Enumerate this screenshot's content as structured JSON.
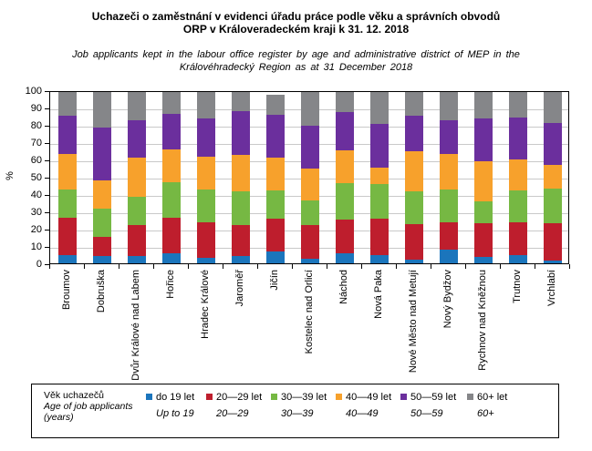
{
  "title": {
    "line1": "Uchazeči o zaměstnání v evidenci úřadu práce podle věku a správních obvodů",
    "line2": "ORP v Královeradeckém kraji k 31. 12. 2018"
  },
  "subtitle": {
    "line1": "Job applicants kept in the labour office register by age and administrative district of MEP in the",
    "line2": "Královéhradecký Region as at 31 December 2018"
  },
  "legend": {
    "title_cs": "Věk uchazečů",
    "title_en_line1": "Age of job applicants",
    "title_en_line2": "(years)"
  },
  "colors": {
    "grid": "#c9c9c9",
    "axis": "#000000"
  },
  "chart_data": {
    "type": "bar",
    "stacked": true,
    "ylabel": "%",
    "xlabel": "",
    "ylim": [
      0,
      100
    ],
    "yticks": [
      0,
      10,
      20,
      30,
      40,
      50,
      60,
      70,
      80,
      90,
      100
    ],
    "grid": true,
    "legend_position": "bottom",
    "categories": [
      "Broumov",
      "Dobruška",
      "Dvůr Králové nad Labem",
      "Hořice",
      "Hradec Králové",
      "Jaroměř",
      "Jičín",
      "Kostelec nad Orlicí",
      "Náchod",
      "Nová Paka",
      "Nové Město nad Metují",
      "Nový Bydžov",
      "Rychnov nad Kněžnou",
      "Trutnov",
      "Vrchlabí"
    ],
    "series": [
      {
        "name": "do 19 let",
        "name_en": "Up to 19",
        "color": "#1B75BC",
        "values": [
          4.7,
          4.4,
          4.4,
          5.8,
          3.0,
          4.4,
          7.0,
          2.6,
          5.6,
          4.7,
          2.3,
          8.2,
          3.5,
          4.7,
          1.4
        ]
      },
      {
        "name": "20—29 let",
        "name_en": "20—29",
        "color": "#BE1E2D",
        "values": [
          22.1,
          11.0,
          17.9,
          20.7,
          21.2,
          17.9,
          19.0,
          19.7,
          19.8,
          21.6,
          20.5,
          15.8,
          19.8,
          19.3,
          21.8
        ]
      },
      {
        "name": "30—39 let",
        "name_en": "30—39",
        "color": "#76B843",
        "values": [
          16.2,
          16.4,
          16.3,
          20.9,
          18.8,
          19.8,
          16.6,
          14.5,
          21.4,
          20.2,
          19.3,
          19.0,
          12.7,
          18.6,
          20.3
        ]
      },
      {
        "name": "40—49 let",
        "name_en": "40—49",
        "color": "#F7A12C",
        "values": [
          20.9,
          16.4,
          23.2,
          19.3,
          19.1,
          21.1,
          19.3,
          18.5,
          19.3,
          9.6,
          23.3,
          20.7,
          23.6,
          18.3,
          14.0
        ]
      },
      {
        "name": "50—59 let",
        "name_en": "50—59",
        "color": "#6B2F9D",
        "values": [
          22.1,
          31.3,
          21.9,
          20.8,
          22.5,
          25.7,
          24.9,
          25.2,
          22.1,
          25.1,
          20.9,
          19.6,
          25.1,
          24.5,
          24.5
        ]
      },
      {
        "name": "60+ let",
        "name_en": "60+",
        "color": "#858689",
        "values": [
          14.0,
          20.5,
          16.3,
          12.5,
          15.4,
          11.1,
          11.8,
          19.5,
          11.8,
          18.8,
          13.7,
          16.7,
          15.3,
          14.6,
          18.0
        ]
      }
    ]
  }
}
